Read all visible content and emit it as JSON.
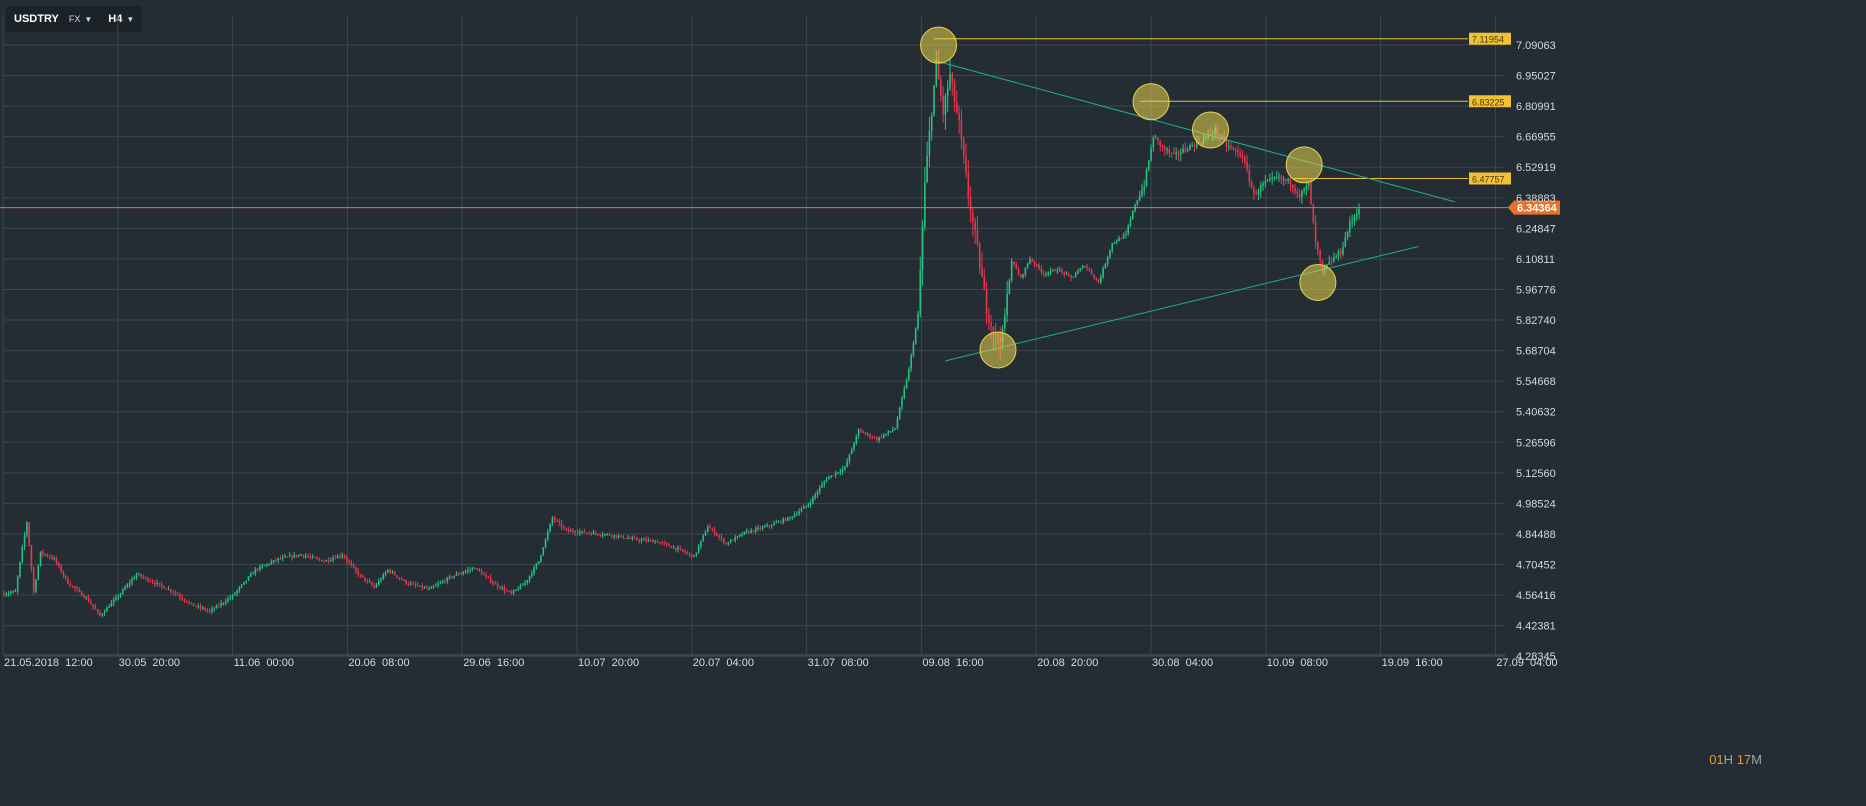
{
  "toolbar": {
    "symbol": "USDTRY",
    "type": "FX",
    "timeframe": "H4"
  },
  "countdown": {
    "hours": "01",
    "hours_unit": "H",
    "minutes": "17",
    "minutes_unit": "M"
  },
  "colors": {
    "background": "#242d34",
    "grid": "#3a4650",
    "up": "#26c281",
    "down": "#e8344d",
    "current_price_line": "#e8722c",
    "level_line": "#f2c037",
    "trend_line": "#1fae91",
    "marker_fill": "#e7d44c",
    "axis_text": "#d4dadf"
  },
  "chart_data": {
    "type": "candlestick",
    "symbol": "USDTRY",
    "timeframe": "H4",
    "x_tick_labels": [
      "21.05.2018  12:00",
      "30.05  20:00",
      "11.06  00:00",
      "20.06  08:00",
      "29.06  16:00",
      "10.07  20:00",
      "20.07  04:00",
      "31.07  08:00",
      "09.08  16:00",
      "20.08  20:00",
      "30.08  04:00",
      "10.09  08:00",
      "19.09  16:00",
      "27.09  04:00"
    ],
    "y_tick_labels": [
      "7.09063",
      "6.95027",
      "6.80991",
      "6.66955",
      "6.52919",
      "6.38883",
      "6.24847",
      "6.10811",
      "5.96776",
      "5.82740",
      "5.68704",
      "5.54668",
      "5.40632",
      "5.26596",
      "5.12560",
      "4.98524",
      "4.84488",
      "4.70452",
      "4.56416",
      "4.42381",
      "4.28345"
    ],
    "ylim": [
      4.28345,
      7.19
    ],
    "current_price": "6.34364",
    "horizontal_levels": [
      "7.11954",
      "6.83225",
      "6.47757"
    ],
    "price_path": [
      {
        "i": 0,
        "p": 4.57
      },
      {
        "i": 5,
        "p": 4.58
      },
      {
        "i": 8,
        "p": 4.78
      },
      {
        "i": 10,
        "p": 4.9
      },
      {
        "i": 13,
        "p": 4.58
      },
      {
        "i": 16,
        "p": 4.76
      },
      {
        "i": 22,
        "p": 4.73
      },
      {
        "i": 28,
        "p": 4.62
      },
      {
        "i": 36,
        "p": 4.55
      },
      {
        "i": 42,
        "p": 4.47
      },
      {
        "i": 50,
        "p": 4.56
      },
      {
        "i": 58,
        "p": 4.66
      },
      {
        "i": 66,
        "p": 4.62
      },
      {
        "i": 74,
        "p": 4.58
      },
      {
        "i": 82,
        "p": 4.52
      },
      {
        "i": 90,
        "p": 4.49
      },
      {
        "i": 100,
        "p": 4.56
      },
      {
        "i": 110,
        "p": 4.68
      },
      {
        "i": 120,
        "p": 4.73
      },
      {
        "i": 130,
        "p": 4.75
      },
      {
        "i": 140,
        "p": 4.72
      },
      {
        "i": 148,
        "p": 4.75
      },
      {
        "i": 155,
        "p": 4.66
      },
      {
        "i": 162,
        "p": 4.6
      },
      {
        "i": 168,
        "p": 4.68
      },
      {
        "i": 176,
        "p": 4.62
      },
      {
        "i": 186,
        "p": 4.59
      },
      {
        "i": 196,
        "p": 4.65
      },
      {
        "i": 206,
        "p": 4.69
      },
      {
        "i": 214,
        "p": 4.62
      },
      {
        "i": 222,
        "p": 4.57
      },
      {
        "i": 228,
        "p": 4.62
      },
      {
        "i": 234,
        "p": 4.72
      },
      {
        "i": 240,
        "p": 4.92
      },
      {
        "i": 246,
        "p": 4.86
      },
      {
        "i": 256,
        "p": 4.85
      },
      {
        "i": 266,
        "p": 4.84
      },
      {
        "i": 276,
        "p": 4.82
      },
      {
        "i": 286,
        "p": 4.81
      },
      {
        "i": 296,
        "p": 4.77
      },
      {
        "i": 302,
        "p": 4.74
      },
      {
        "i": 308,
        "p": 4.88
      },
      {
        "i": 316,
        "p": 4.8
      },
      {
        "i": 324,
        "p": 4.85
      },
      {
        "i": 334,
        "p": 4.88
      },
      {
        "i": 344,
        "p": 4.92
      },
      {
        "i": 352,
        "p": 4.98
      },
      {
        "i": 360,
        "p": 5.1
      },
      {
        "i": 368,
        "p": 5.15
      },
      {
        "i": 374,
        "p": 5.32
      },
      {
        "i": 382,
        "p": 5.28
      },
      {
        "i": 390,
        "p": 5.33
      },
      {
        "i": 396,
        "p": 5.6
      },
      {
        "i": 400,
        "p": 5.85
      },
      {
        "i": 403,
        "p": 6.45
      },
      {
        "i": 406,
        "p": 6.8
      },
      {
        "i": 408,
        "p": 7.0
      },
      {
        "i": 411,
        "p": 6.78
      },
      {
        "i": 414,
        "p": 6.95
      },
      {
        "i": 418,
        "p": 6.72
      },
      {
        "i": 422,
        "p": 6.4
      },
      {
        "i": 426,
        "p": 6.15
      },
      {
        "i": 430,
        "p": 5.88
      },
      {
        "i": 434,
        "p": 5.74
      },
      {
        "i": 437,
        "p": 5.76
      },
      {
        "i": 441,
        "p": 6.1
      },
      {
        "i": 445,
        "p": 6.02
      },
      {
        "i": 449,
        "p": 6.11
      },
      {
        "i": 455,
        "p": 6.04
      },
      {
        "i": 461,
        "p": 6.06
      },
      {
        "i": 467,
        "p": 6.02
      },
      {
        "i": 473,
        "p": 6.08
      },
      {
        "i": 479,
        "p": 6.0
      },
      {
        "i": 485,
        "p": 6.18
      },
      {
        "i": 491,
        "p": 6.22
      },
      {
        "i": 495,
        "p": 6.36
      },
      {
        "i": 499,
        "p": 6.45
      },
      {
        "i": 503,
        "p": 6.67
      },
      {
        "i": 507,
        "p": 6.62
      },
      {
        "i": 512,
        "p": 6.58
      },
      {
        "i": 518,
        "p": 6.62
      },
      {
        "i": 524,
        "p": 6.65
      },
      {
        "i": 530,
        "p": 6.7
      },
      {
        "i": 535,
        "p": 6.63
      },
      {
        "i": 542,
        "p": 6.58
      },
      {
        "i": 547,
        "p": 6.4
      },
      {
        "i": 551,
        "p": 6.45
      },
      {
        "i": 557,
        "p": 6.48
      },
      {
        "i": 563,
        "p": 6.46
      },
      {
        "i": 567,
        "p": 6.4
      },
      {
        "i": 571,
        "p": 6.45
      },
      {
        "i": 574,
        "p": 6.18
      },
      {
        "i": 577,
        "p": 6.05
      },
      {
        "i": 581,
        "p": 6.1
      },
      {
        "i": 585,
        "p": 6.14
      },
      {
        "i": 589,
        "p": 6.27
      },
      {
        "i": 593,
        "p": 6.34
      }
    ]
  }
}
